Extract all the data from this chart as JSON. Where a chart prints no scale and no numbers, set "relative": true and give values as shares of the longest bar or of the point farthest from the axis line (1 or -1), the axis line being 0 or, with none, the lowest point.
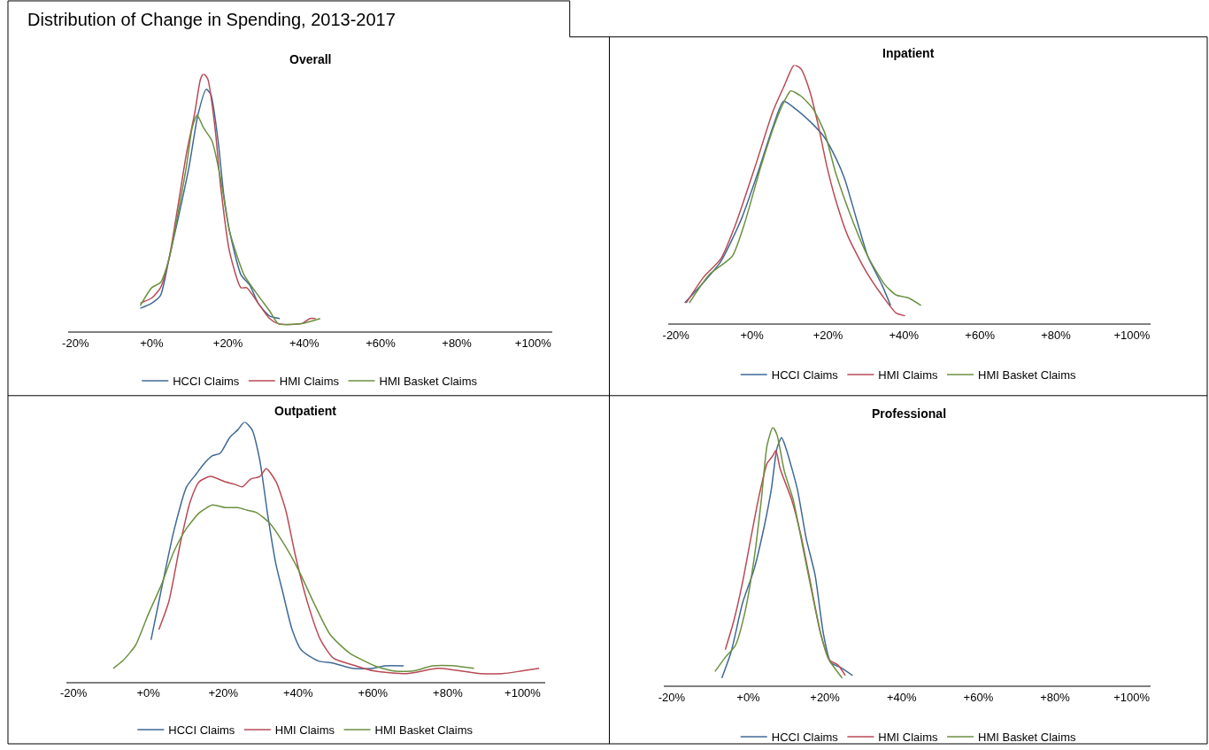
{
  "chart_data": [
    {
      "type": "line",
      "title": "Overall",
      "annotations": [
        "Distribution of Change in Spending, 2013-2017"
      ],
      "relative": true,
      "legend": "bottom",
      "xlim": [
        -22,
        105
      ],
      "xticks": [
        {
          "value": -20,
          "label": "-20%"
        },
        {
          "value": 0,
          "label": "+0%"
        },
        {
          "value": 20,
          "label": "+20%"
        },
        {
          "value": 40,
          "label": "+40%"
        },
        {
          "value": 60,
          "label": "+60%"
        },
        {
          "value": 80,
          "label": "+80%"
        },
        {
          "value": 100,
          "label": "+100%"
        }
      ],
      "series": [
        {
          "name": "HCCI Claims",
          "color": "#3f6a96",
          "x": [
            -3.0,
            0,
            2.3,
            4.5,
            6.8,
            9.8,
            12.1,
            14.3,
            15.5,
            17.4,
            18.9,
            20.4,
            23.4,
            25.7,
            27.9,
            30.9,
            33.6
          ],
          "values": [
            0.09,
            0.11,
            0.14,
            0.28,
            0.43,
            0.64,
            0.84,
            0.94,
            0.92,
            0.74,
            0.53,
            0.39,
            0.22,
            0.18,
            0.11,
            0.06,
            0.05
          ]
        },
        {
          "name": "HMI Claims",
          "color": "#b94a55",
          "x": [
            -3.0,
            0,
            2.3,
            4.5,
            6.8,
            9.1,
            11.3,
            12.8,
            13.6,
            14.7,
            16.6,
            18.1,
            20.4,
            23.4,
            24.9,
            27.9,
            30.9,
            33.2,
            39.2,
            41.5,
            43.0
          ],
          "values": [
            0.11,
            0.13,
            0.17,
            0.28,
            0.48,
            0.69,
            0.85,
            0.98,
            1.0,
            0.98,
            0.79,
            0.56,
            0.31,
            0.17,
            0.17,
            0.11,
            0.05,
            0.03,
            0.03,
            0.05,
            0.05
          ]
        },
        {
          "name": "HMI Basket Claims",
          "color": "#6b9140",
          "x": [
            -3.0,
            0,
            2.3,
            4.5,
            6.8,
            9.1,
            10.6,
            11.9,
            13.6,
            15.8,
            18.1,
            20.4,
            24.2,
            27.9,
            30.9,
            33.2,
            39.2,
            44.2
          ],
          "values": [
            0.1,
            0.17,
            0.19,
            0.28,
            0.45,
            0.64,
            0.79,
            0.84,
            0.79,
            0.74,
            0.59,
            0.39,
            0.22,
            0.14,
            0.08,
            0.03,
            0.03,
            0.05
          ]
        }
      ]
    },
    {
      "type": "line",
      "title": "Inpatient",
      "relative": true,
      "legend": "bottom",
      "xlim": [
        -22,
        105
      ],
      "xticks": [
        {
          "value": -20,
          "label": "-20%"
        },
        {
          "value": 0,
          "label": "+0%"
        },
        {
          "value": 20,
          "label": "+20%"
        },
        {
          "value": 40,
          "label": "+40%"
        },
        {
          "value": 60,
          "label": "+60%"
        },
        {
          "value": 80,
          "label": "+80%"
        },
        {
          "value": 100,
          "label": "+100%"
        }
      ],
      "series": [
        {
          "name": "HCCI Claims",
          "color": "#3f6a96",
          "x": [
            -17.7,
            -12.7,
            -8.2,
            -2.9,
            1.7,
            5.5,
            8.3,
            11.5,
            16.1,
            19.1,
            22.1,
            24.4,
            27.4,
            30.5,
            34.2,
            36.5
          ],
          "values": [
            0.08,
            0.16,
            0.24,
            0.4,
            0.59,
            0.76,
            0.86,
            0.83,
            0.77,
            0.72,
            0.64,
            0.56,
            0.41,
            0.26,
            0.15,
            0.07
          ]
        },
        {
          "name": "HMI Claims",
          "color": "#b94a55",
          "x": [
            -17.3,
            -12.7,
            -8.2,
            -4.4,
            0.9,
            5.5,
            8.5,
            11.1,
            12.9,
            15.2,
            17.4,
            19.7,
            22.0,
            25.2,
            29.7,
            34.2,
            38.0,
            40.3
          ],
          "values": [
            0.08,
            0.18,
            0.25,
            0.38,
            0.61,
            0.82,
            0.92,
            1.0,
            0.985,
            0.9,
            0.77,
            0.61,
            0.48,
            0.34,
            0.21,
            0.11,
            0.04,
            0.03
          ]
        },
        {
          "name": "HMI Basket Claims",
          "color": "#6b9140",
          "x": [
            -16.5,
            -11.2,
            -5.2,
            -2.1,
            2.4,
            6.2,
            8.5,
            10.2,
            12.9,
            16.1,
            19.1,
            22.1,
            26.7,
            30.5,
            35.0,
            38.0,
            41.1,
            44.5
          ],
          "values": [
            0.08,
            0.19,
            0.26,
            0.38,
            0.61,
            0.78,
            0.86,
            0.9,
            0.88,
            0.83,
            0.74,
            0.58,
            0.39,
            0.26,
            0.15,
            0.11,
            0.1,
            0.07
          ]
        }
      ]
    },
    {
      "type": "line",
      "title": "Outpatient",
      "relative": true,
      "legend": "bottom",
      "xlim": [
        -22,
        106
      ],
      "xticks": [
        {
          "value": -20,
          "label": "-20%"
        },
        {
          "value": 0,
          "label": "+0%"
        },
        {
          "value": 20,
          "label": "+20%"
        },
        {
          "value": 40,
          "label": "+40%"
        },
        {
          "value": 60,
          "label": "+60%"
        },
        {
          "value": 80,
          "label": "+80%"
        },
        {
          "value": 100,
          "label": "+100%"
        }
      ],
      "series": [
        {
          "name": "HCCI Claims",
          "color": "#3f6a96",
          "x": [
            0.7,
            3.4,
            6.8,
            10.2,
            12.8,
            14.9,
            17.1,
            19.2,
            21.7,
            23.9,
            25.7,
            27.7,
            29.8,
            31.9,
            34.1,
            35.8,
            38.4,
            40.9,
            45.2,
            49.4,
            54.6,
            59.7,
            63.1,
            68.2
          ],
          "values": [
            0.16,
            0.35,
            0.58,
            0.75,
            0.8,
            0.84,
            0.87,
            0.88,
            0.94,
            0.97,
            1.0,
            0.97,
            0.85,
            0.64,
            0.45,
            0.35,
            0.2,
            0.12,
            0.08,
            0.07,
            0.05,
            0.05,
            0.06,
            0.06
          ]
        },
        {
          "name": "HMI Claims",
          "color": "#b94a55",
          "x": [
            2.8,
            5.5,
            8.5,
            11.1,
            13.6,
            16.6,
            20.4,
            23.0,
            25.1,
            27.3,
            29.8,
            31.5,
            34.1,
            36.7,
            39.2,
            42.6,
            46.0,
            49.4,
            55.4,
            60.4,
            69.0,
            77.5,
            88.7,
            94.6,
            99.7,
            104.4
          ],
          "values": [
            0.2,
            0.31,
            0.53,
            0.69,
            0.77,
            0.79,
            0.77,
            0.76,
            0.75,
            0.78,
            0.79,
            0.82,
            0.77,
            0.66,
            0.49,
            0.3,
            0.16,
            0.09,
            0.06,
            0.04,
            0.03,
            0.05,
            0.03,
            0.03,
            0.04,
            0.05
          ]
        },
        {
          "name": "HMI Basket Claims",
          "color": "#6b9140",
          "x": [
            -9.4,
            -6.8,
            -3.4,
            0,
            3.4,
            6.8,
            10.2,
            13.6,
            17.1,
            20.5,
            23.9,
            26.4,
            29.0,
            32.4,
            35.8,
            40.1,
            44.3,
            48.6,
            53.7,
            60.5,
            65.6,
            70.7,
            75.9,
            81.8,
            87.0
          ],
          "values": [
            0.05,
            0.08,
            0.14,
            0.26,
            0.37,
            0.5,
            0.59,
            0.65,
            0.68,
            0.67,
            0.67,
            0.66,
            0.65,
            0.61,
            0.54,
            0.43,
            0.3,
            0.18,
            0.11,
            0.06,
            0.04,
            0.04,
            0.06,
            0.06,
            0.05
          ]
        }
      ]
    },
    {
      "type": "line",
      "title": "Professional",
      "relative": true,
      "legend": "bottom",
      "xlim": [
        -22,
        105
      ],
      "xticks": [
        {
          "value": -20,
          "label": "-20%"
        },
        {
          "value": 0,
          "label": "+0%"
        },
        {
          "value": 20,
          "label": "+20%"
        },
        {
          "value": 40,
          "label": "+40%"
        },
        {
          "value": 60,
          "label": "+60%"
        },
        {
          "value": 80,
          "label": "+80%"
        },
        {
          "value": 100,
          "label": "+100%"
        }
      ],
      "series": [
        {
          "name": "HCCI Claims",
          "color": "#3f6a96",
          "x": [
            -6.9,
            -4.5,
            -1.5,
            1.5,
            4.2,
            6.0,
            7.5,
            8.7,
            9.8,
            12.8,
            15.1,
            17.4,
            19.6,
            21.5,
            24.2,
            27.2
          ],
          "values": [
            0.03,
            0.13,
            0.32,
            0.45,
            0.62,
            0.76,
            0.92,
            0.96,
            0.92,
            0.76,
            0.57,
            0.43,
            0.2,
            0.09,
            0.07,
            0.04
          ]
        },
        {
          "name": "HMI Claims",
          "color": "#b94a55",
          "x": [
            -6.0,
            -3.8,
            -1.5,
            0.4,
            2.6,
            4.9,
            6.4,
            7.2,
            8.3,
            11.3,
            13.6,
            15.8,
            18.9,
            21.1,
            23.4,
            25.3
          ],
          "values": [
            0.14,
            0.25,
            0.4,
            0.55,
            0.72,
            0.86,
            0.89,
            0.91,
            0.84,
            0.72,
            0.59,
            0.43,
            0.2,
            0.1,
            0.08,
            0.04
          ]
        },
        {
          "name": "HMI Basket Claims",
          "color": "#6b9140",
          "x": [
            -8.7,
            -6.0,
            -3.4,
            -0.8,
            1.5,
            3.4,
            4.9,
            6.4,
            7.5,
            9.4,
            11.7,
            14.3,
            16.6,
            18.9,
            21.1,
            24.5
          ],
          "values": [
            0.055,
            0.11,
            0.155,
            0.29,
            0.49,
            0.72,
            0.93,
            1.0,
            0.97,
            0.83,
            0.72,
            0.53,
            0.36,
            0.2,
            0.1,
            0.03
          ]
        }
      ]
    }
  ]
}
